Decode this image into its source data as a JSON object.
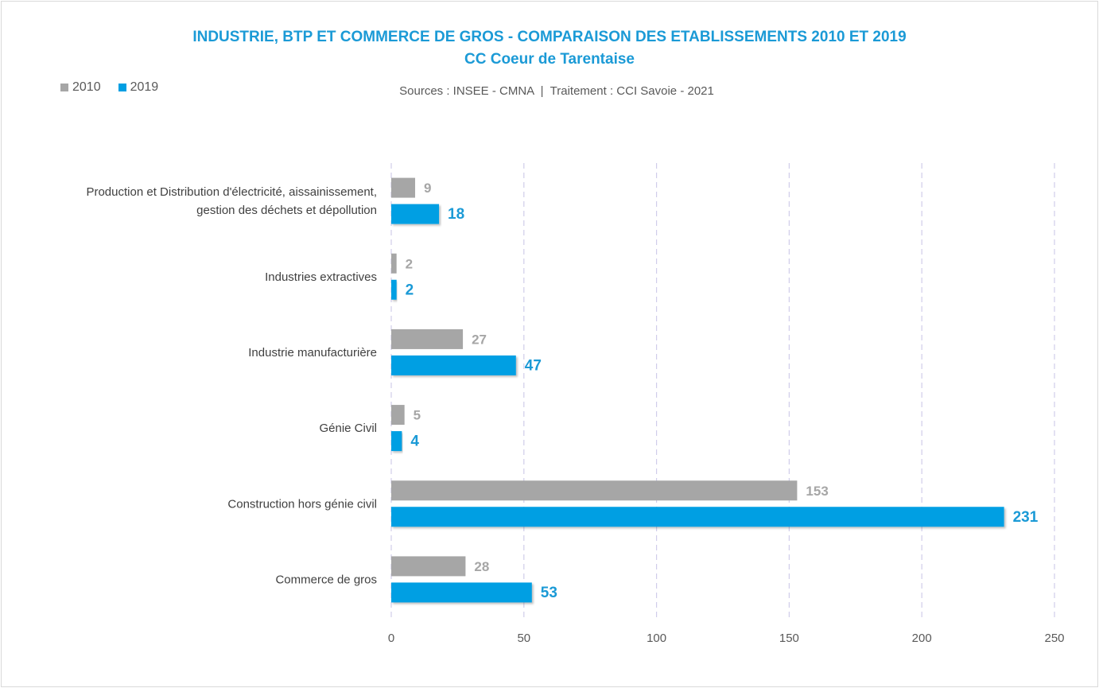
{
  "chart_data": {
    "type": "bar",
    "orientation": "horizontal",
    "title": "INDUSTRIE, BTP ET COMMERCE DE GROS - COMPARAISON DES ETABLISSEMENTS 2010 ET 2019",
    "subtitle": "CC Coeur de Tarentaise",
    "source": "Sources : INSEE - CMNA  |  Traitement : CCI Savoie - 2021",
    "categories": [
      [
        "Production et Distribution d'électricité, aissainissement,",
        "gestion des déchets et dépollution"
      ],
      [
        "Industries extractives"
      ],
      [
        "Industrie manufacturière"
      ],
      [
        "Génie Civil"
      ],
      [
        "Construction hors génie civil"
      ],
      [
        "Commerce de gros"
      ]
    ],
    "series": [
      {
        "name": "2010",
        "color": "#a6a6a6",
        "values": [
          9,
          2,
          27,
          5,
          153,
          28
        ]
      },
      {
        "name": "2019",
        "color": "#009fe3",
        "values": [
          18,
          2,
          47,
          4,
          231,
          53
        ]
      }
    ],
    "xlim": [
      0,
      250
    ],
    "xticks": [
      "0",
      "50",
      "100",
      "150",
      "200",
      "250"
    ],
    "grid": true,
    "legend_position": "top-left"
  }
}
